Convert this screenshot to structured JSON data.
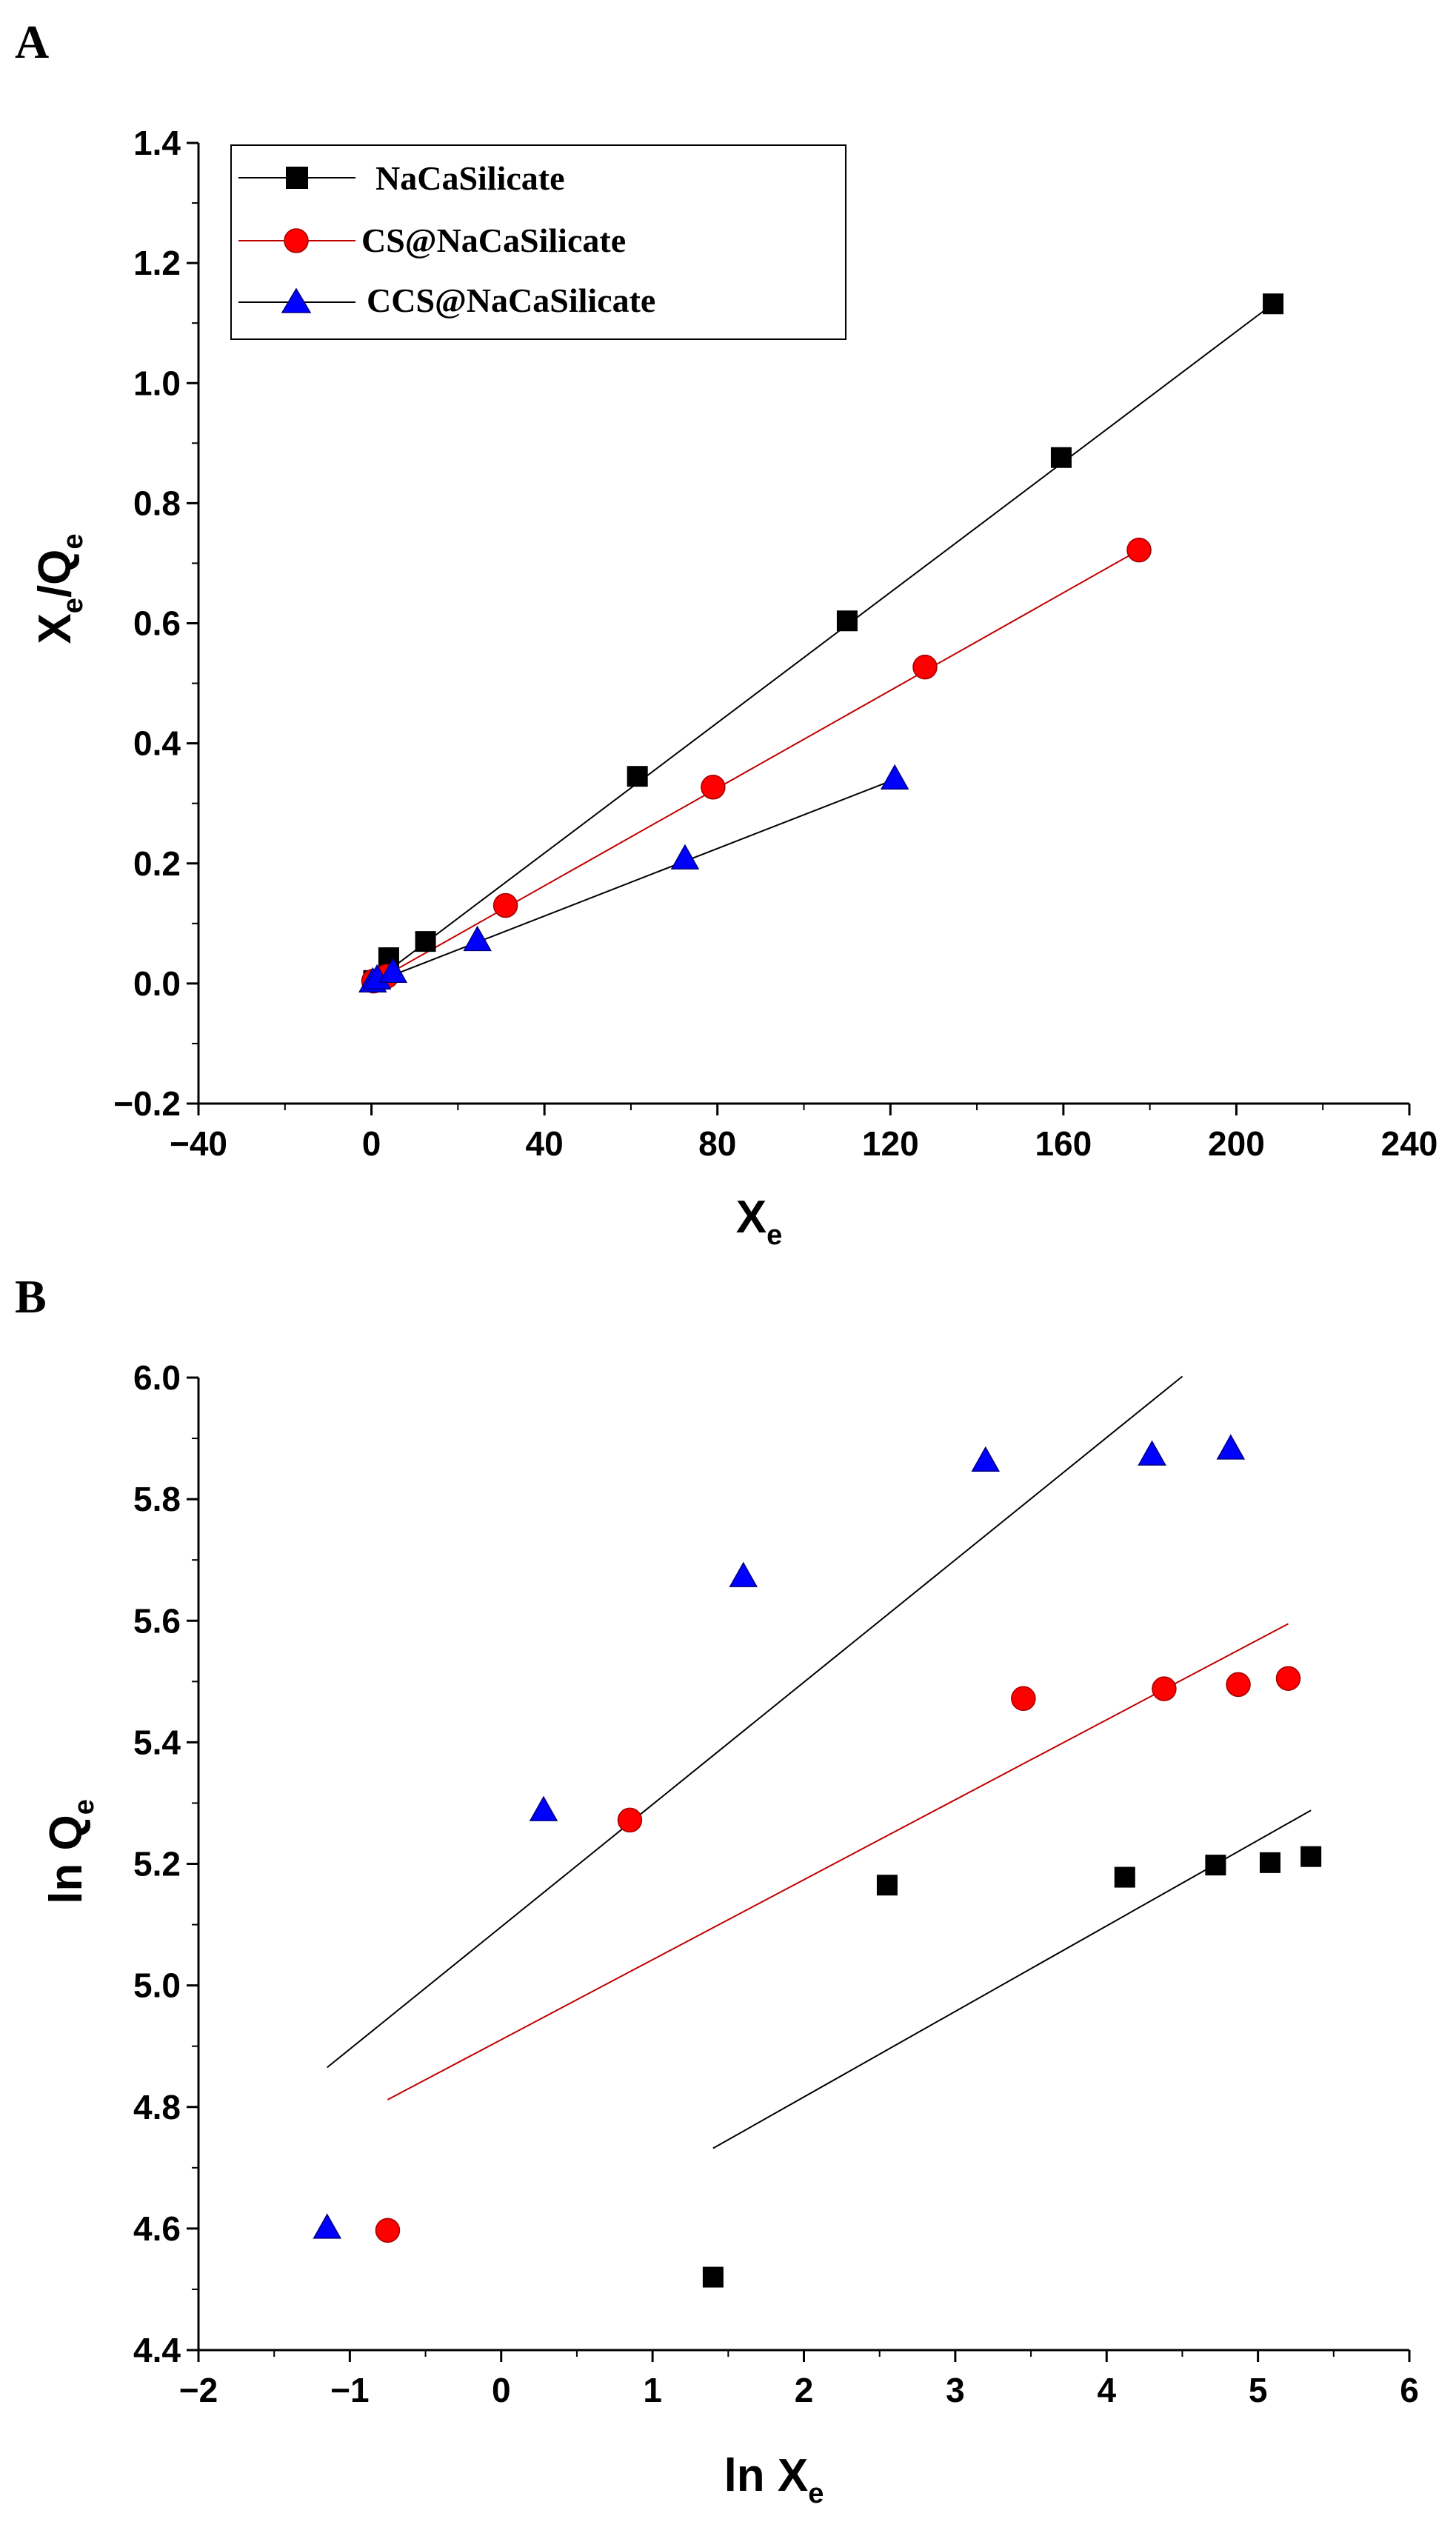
{
  "chart_data": [
    {
      "panel_label": "A",
      "type": "scatter",
      "xlabel": {
        "main": "X",
        "sub": "e"
      },
      "ylabel": {
        "main": "X",
        "sub1": "e",
        "mid": "/Q",
        "sub2": "e"
      },
      "xlim": [
        -40,
        240
      ],
      "ylim": [
        -0.2,
        1.4
      ],
      "xticks": [
        -40,
        0,
        40,
        80,
        120,
        160,
        200,
        240
      ],
      "yticks": [
        -0.2,
        0.0,
        0.2,
        0.4,
        0.6,
        0.8,
        1.0,
        1.2,
        1.4
      ],
      "xtick_labels": [
        "−40",
        "0",
        "40",
        "80",
        "120",
        "160",
        "200",
        "240"
      ],
      "ytick_labels": [
        "−0.2",
        "0.0",
        "0.2",
        "0.4",
        "0.6",
        "0.8",
        "1.0",
        "1.2",
        "1.4"
      ],
      "legend_position": "top-left",
      "series": [
        {
          "name": "NaCaSilicate",
          "color": "#000000",
          "marker": "square",
          "line_color": "#000000",
          "x": [
            0.5,
            4,
            12.5,
            61.5,
            110,
            159.5,
            208.5
          ],
          "y": [
            0.005,
            0.043,
            0.07,
            0.345,
            0.604,
            0.876,
            1.132
          ],
          "fit": {
            "x": [
              0,
              208.5
            ],
            "y": [
              0.0,
              1.132
            ]
          }
        },
        {
          "name": "CS@NaCaSilicate",
          "color": "#ff0000",
          "marker": "circle",
          "line_color": "#c00000",
          "x": [
            0.5,
            3.5,
            31,
            79,
            128,
            177.5
          ],
          "y": [
            0.004,
            0.012,
            0.13,
            0.327,
            0.527,
            0.722
          ],
          "fit": {
            "x": [
              0,
              177.5
            ],
            "y": [
              0.0,
              0.722
            ]
          }
        },
        {
          "name": "CCS@NaCaSilicate",
          "color": "#0000ff",
          "marker": "triangle",
          "line_color": "#000000",
          "x": [
            0.3,
            1.3,
            5,
            24.5,
            72.5,
            121
          ],
          "y": [
            0.002,
            0.007,
            0.018,
            0.071,
            0.207,
            0.34
          ],
          "fit": {
            "x": [
              0,
              121
            ],
            "y": [
              0.0,
              0.34
            ]
          }
        }
      ]
    },
    {
      "panel_label": "B",
      "type": "scatter",
      "xlabel": {
        "main": "ln X",
        "sub": "e"
      },
      "ylabel": {
        "main": "ln Q",
        "sub": "e"
      },
      "xlim": [
        -2,
        6
      ],
      "ylim": [
        4.4,
        6.0
      ],
      "xticks": [
        -2,
        -1,
        0,
        1,
        2,
        3,
        4,
        5,
        6
      ],
      "yticks": [
        4.4,
        4.6,
        4.8,
        5.0,
        5.2,
        5.4,
        5.6,
        5.8,
        6.0
      ],
      "xtick_labels": [
        "−2",
        "−1",
        "0",
        "1",
        "2",
        "3",
        "4",
        "5",
        "6"
      ],
      "ytick_labels": [
        "4.4",
        "4.6",
        "4.8",
        "5.0",
        "5.2",
        "5.4",
        "5.6",
        "5.8",
        "6.0"
      ],
      "series": [
        {
          "name": "NaCaSilicate",
          "color": "#000000",
          "marker": "square",
          "line_color": "#000000",
          "x": [
            1.4,
            2.55,
            4.12,
            4.72,
            5.08,
            5.35
          ],
          "y": [
            4.52,
            5.165,
            5.178,
            5.198,
            5.202,
            5.212
          ],
          "fit": {
            "x": [
              1.4,
              5.35
            ],
            "y": [
              4.732,
              5.288
            ]
          }
        },
        {
          "name": "CS@NaCaSilicate",
          "color": "#ff0000",
          "marker": "circle",
          "line_color": "#c00000",
          "x": [
            -0.75,
            0.85,
            3.45,
            4.38,
            4.87,
            5.2
          ],
          "y": [
            4.597,
            5.272,
            5.472,
            5.488,
            5.495,
            5.505
          ],
          "fit": {
            "x": [
              -0.75,
              5.2
            ],
            "y": [
              4.812,
              5.595
            ]
          }
        },
        {
          "name": "CCS@NaCaSilicate",
          "color": "#0000ff",
          "marker": "triangle",
          "line_color": "#000000",
          "x": [
            -1.15,
            0.28,
            1.6,
            3.2,
            4.3,
            4.82
          ],
          "y": [
            4.6,
            5.287,
            5.672,
            5.862,
            5.872,
            5.882
          ],
          "fit": {
            "x": [
              -1.15,
              4.5
            ],
            "y": [
              4.865,
              6.002
            ]
          }
        }
      ]
    }
  ]
}
